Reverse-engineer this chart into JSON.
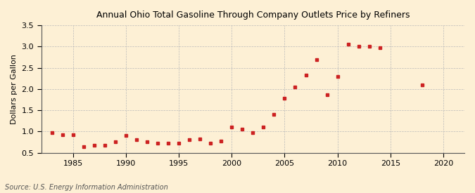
{
  "title": "Annual Ohio Total Gasoline Through Company Outlets Price by Refiners",
  "ylabel": "Dollars per Gallon",
  "source": "Source: U.S. Energy Information Administration",
  "background_color": "#fdf0d5",
  "plot_bg_color": "#fdf0d5",
  "marker_color": "#cc2222",
  "xlim": [
    1982,
    2022
  ],
  "ylim": [
    0.5,
    3.5
  ],
  "xticks": [
    1985,
    1990,
    1995,
    2000,
    2005,
    2010,
    2015,
    2020
  ],
  "yticks": [
    0.5,
    1.0,
    1.5,
    2.0,
    2.5,
    3.0,
    3.5
  ],
  "years": [
    1983,
    1984,
    1985,
    1986,
    1987,
    1988,
    1989,
    1990,
    1991,
    1992,
    1993,
    1994,
    1995,
    1996,
    1997,
    1998,
    1999,
    2000,
    2001,
    2002,
    2003,
    2004,
    2005,
    2006,
    2007,
    2008,
    2009,
    2010,
    2011,
    2012,
    2013,
    2014,
    2018
  ],
  "values": [
    0.98,
    0.93,
    0.93,
    0.64,
    0.68,
    0.67,
    0.75,
    0.9,
    0.8,
    0.75,
    0.72,
    0.72,
    0.72,
    0.8,
    0.82,
    0.72,
    0.77,
    1.1,
    1.05,
    0.97,
    1.1,
    1.4,
    1.78,
    2.05,
    2.33,
    2.7,
    1.87,
    2.3,
    3.05,
    3.0,
    3.0,
    2.98,
    2.1
  ]
}
